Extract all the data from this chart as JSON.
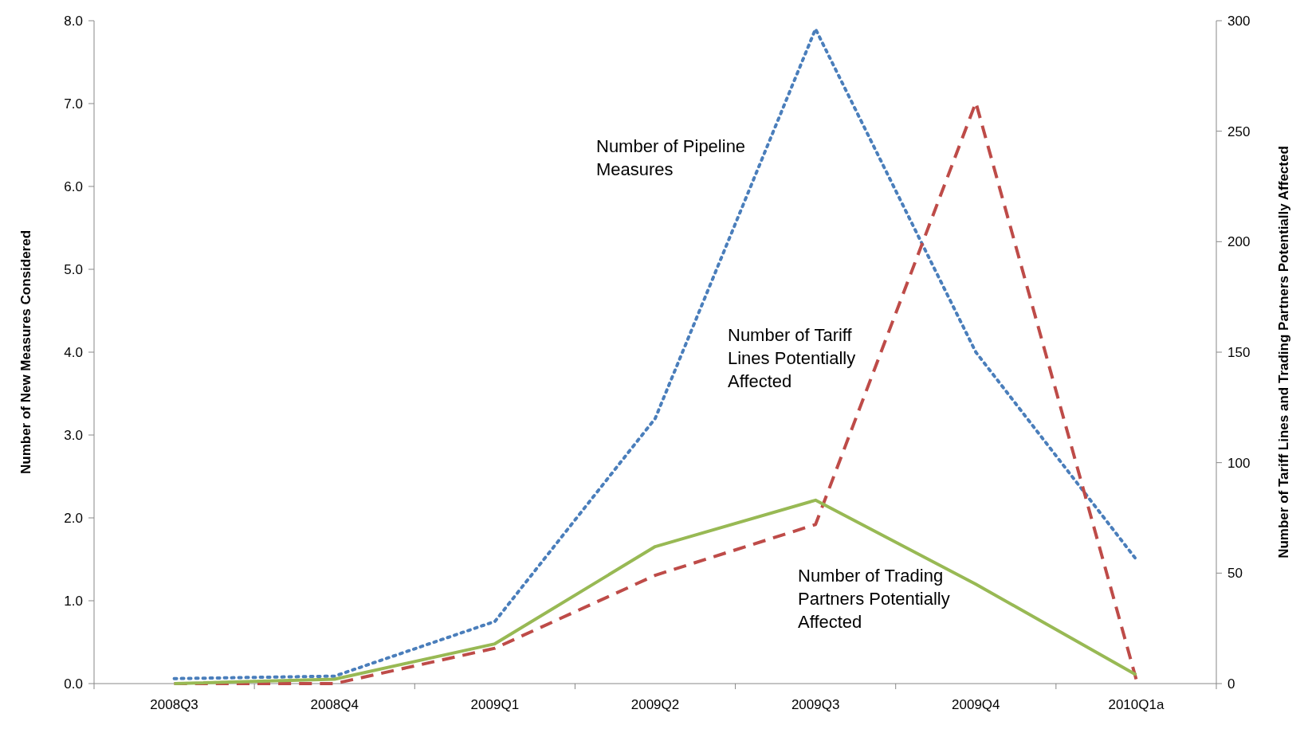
{
  "chart_data": {
    "type": "line",
    "categories": [
      "2008Q3",
      "2008Q4",
      "2009Q1",
      "2009Q2",
      "2009Q3",
      "2009Q4",
      "2010Q1a"
    ],
    "ylabel": "Number of New Measures Considered",
    "y2label": "Number of Tariff Lines and Trading Partners Potentially Affected",
    "ylim": [
      0,
      8
    ],
    "yticks": [
      {
        "value": 0,
        "label": "0.0"
      },
      {
        "value": 1,
        "label": "1.0"
      },
      {
        "value": 2,
        "label": "2.0"
      },
      {
        "value": 3,
        "label": "3.0"
      },
      {
        "value": 4,
        "label": "4.0"
      },
      {
        "value": 5,
        "label": "5.0"
      },
      {
        "value": 6,
        "label": "6.0"
      },
      {
        "value": 7,
        "label": "7.0"
      },
      {
        "value": 8,
        "label": "8.0"
      }
    ],
    "y2lim": [
      0,
      300
    ],
    "y2ticks": [
      0,
      50,
      100,
      150,
      200,
      250,
      300
    ],
    "grid": false,
    "marker": "none",
    "series": [
      {
        "name": "Number of Pipeline Measures",
        "color": "#4a7ebb",
        "line_style": "dotted",
        "values": [
          0.06,
          0.09,
          0.75,
          3.2,
          7.9,
          4.0,
          1.5
        ]
      },
      {
        "name": "Number of Tariff Lines Potentially Affected",
        "color": "#be4b48",
        "line_style": "dashed",
        "axis": "y2",
        "values": [
          0,
          0,
          16,
          49,
          72,
          263,
          2
        ]
      },
      {
        "name": "Number of Trading Partners Potentially Affected",
        "color": "#98b954",
        "line_style": "solid",
        "axis": "y2",
        "values": [
          0,
          2,
          18,
          62,
          83,
          45,
          4
        ]
      }
    ]
  }
}
